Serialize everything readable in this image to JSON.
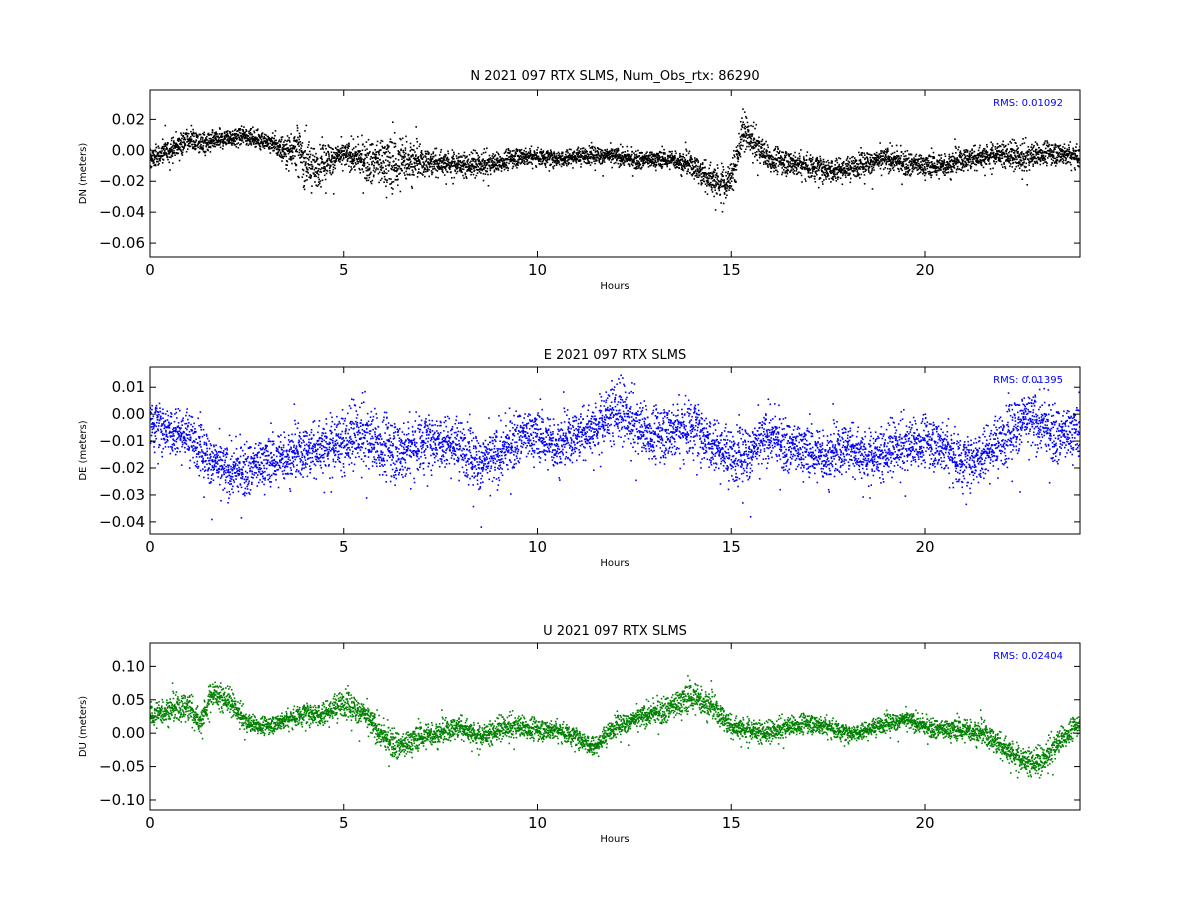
{
  "chart_data": [
    {
      "type": "scatter",
      "title": "N 2021 097 RTX  SLMS, Num_Obs_rtx: 86290",
      "xlabel": "Hours",
      "ylabel": "DN (meters)",
      "xlim": [
        0,
        24
      ],
      "ylim": [
        -0.069,
        0.039
      ],
      "xticks": [
        0,
        5,
        10,
        15,
        20
      ],
      "yticks": [
        0.02,
        0.0,
        -0.02,
        -0.04,
        -0.06
      ],
      "ytick_labels": [
        "0.02",
        "0.00",
        "−0.02",
        "−0.04",
        "−0.06"
      ],
      "rms_label": "RMS:  0.01092",
      "color": "#000000",
      "series": [
        {
          "x": [
            0,
            0.5,
            1,
            1.5,
            2,
            2.5,
            3,
            3.5,
            3.8,
            4,
            4.3,
            4.6,
            5,
            5.5,
            6,
            6.3,
            6.6,
            7,
            7.5,
            8,
            8.5,
            9,
            9.5,
            10,
            10.5,
            11,
            11.5,
            12,
            12.5,
            13,
            13.5,
            14,
            14.3,
            14.6,
            14.9,
            15.1,
            15.3,
            15.6,
            16,
            16.5,
            17,
            17.5,
            18,
            18.5,
            19,
            19.5,
            20,
            20.5,
            21,
            21.5,
            22,
            22.5,
            23,
            23.5,
            24
          ],
          "y": [
            -0.006,
            0.0,
            0.007,
            0.004,
            0.008,
            0.009,
            0.006,
            0.0,
            0.002,
            -0.008,
            -0.012,
            -0.006,
            -0.003,
            -0.006,
            -0.008,
            -0.01,
            -0.006,
            -0.008,
            -0.008,
            -0.009,
            -0.01,
            -0.008,
            -0.004,
            -0.004,
            -0.005,
            -0.004,
            -0.003,
            -0.004,
            -0.006,
            -0.006,
            -0.006,
            -0.01,
            -0.016,
            -0.02,
            -0.022,
            -0.01,
            0.012,
            0.004,
            -0.006,
            -0.008,
            -0.01,
            -0.012,
            -0.012,
            -0.008,
            -0.006,
            -0.008,
            -0.01,
            -0.01,
            -0.006,
            -0.004,
            -0.002,
            -0.006,
            -0.002,
            -0.002,
            -0.004
          ],
          "spread": [
            0.007,
            0.007,
            0.008,
            0.007,
            0.006,
            0.006,
            0.006,
            0.01,
            0.016,
            0.016,
            0.014,
            0.012,
            0.008,
            0.012,
            0.018,
            0.02,
            0.016,
            0.01,
            0.009,
            0.008,
            0.008,
            0.007,
            0.007,
            0.006,
            0.006,
            0.006,
            0.006,
            0.006,
            0.006,
            0.006,
            0.006,
            0.008,
            0.01,
            0.012,
            0.012,
            0.012,
            0.012,
            0.01,
            0.009,
            0.009,
            0.009,
            0.009,
            0.008,
            0.008,
            0.008,
            0.008,
            0.008,
            0.008,
            0.008,
            0.008,
            0.008,
            0.01,
            0.008,
            0.008,
            0.008
          ]
        }
      ]
    },
    {
      "type": "scatter",
      "title": "E 2021 097 RTX  SLMS",
      "xlabel": "Hours",
      "ylabel": "DE (meters)",
      "xlim": [
        0,
        24
      ],
      "ylim": [
        -0.0445,
        0.0175
      ],
      "xticks": [
        0,
        5,
        10,
        15,
        20
      ],
      "yticks": [
        0.01,
        0.0,
        -0.01,
        -0.02,
        -0.03,
        -0.04
      ],
      "ytick_labels": [
        "0.01",
        "0.00",
        "−0.01",
        "−0.02",
        "−0.03",
        "−0.04"
      ],
      "rms_label": "RMS:  0.01395",
      "color": "#0000ff",
      "series": [
        {
          "x": [
            0,
            0.5,
            1,
            1.5,
            2,
            2.5,
            3,
            3.5,
            4,
            4.5,
            5,
            5.5,
            6,
            6.5,
            7,
            7.5,
            8,
            8.5,
            9,
            9.5,
            10,
            10.5,
            11,
            11.5,
            12,
            12.5,
            13,
            13.5,
            14,
            14.5,
            15,
            15.5,
            16,
            16.5,
            17,
            17.5,
            18,
            18.5,
            19,
            19.5,
            20,
            20.5,
            21,
            21.5,
            22,
            22.5,
            23,
            23.5,
            24
          ],
          "y": [
            -0.003,
            -0.005,
            -0.008,
            -0.016,
            -0.022,
            -0.02,
            -0.018,
            -0.016,
            -0.014,
            -0.012,
            -0.01,
            -0.008,
            -0.012,
            -0.014,
            -0.01,
            -0.009,
            -0.012,
            -0.018,
            -0.016,
            -0.008,
            -0.008,
            -0.012,
            -0.008,
            -0.005,
            0.002,
            -0.004,
            -0.008,
            -0.006,
            -0.004,
            -0.01,
            -0.016,
            -0.014,
            -0.008,
            -0.012,
            -0.014,
            -0.016,
            -0.012,
            -0.016,
            -0.014,
            -0.012,
            -0.01,
            -0.012,
            -0.018,
            -0.014,
            -0.01,
            -0.002,
            -0.004,
            -0.008,
            -0.006
          ],
          "spread": [
            0.01,
            0.01,
            0.01,
            0.01,
            0.01,
            0.01,
            0.01,
            0.01,
            0.01,
            0.011,
            0.012,
            0.012,
            0.013,
            0.013,
            0.012,
            0.011,
            0.011,
            0.011,
            0.011,
            0.01,
            0.01,
            0.01,
            0.01,
            0.01,
            0.012,
            0.011,
            0.011,
            0.012,
            0.012,
            0.011,
            0.011,
            0.011,
            0.01,
            0.01,
            0.01,
            0.01,
            0.01,
            0.01,
            0.01,
            0.01,
            0.01,
            0.011,
            0.011,
            0.011,
            0.011,
            0.012,
            0.011,
            0.011,
            0.01
          ]
        }
      ]
    },
    {
      "type": "scatter",
      "title": "U 2021 097 RTX  SLMS",
      "xlabel": "Hours",
      "ylabel": "DU (meters)",
      "xlim": [
        0,
        24
      ],
      "ylim": [
        -0.115,
        0.135
      ],
      "xticks": [
        0,
        5,
        10,
        15,
        20
      ],
      "yticks": [
        0.1,
        0.05,
        0.0,
        -0.05,
        -0.1
      ],
      "ytick_labels": [
        "0.10",
        "0.05",
        "0.00",
        "−0.05",
        "−0.10"
      ],
      "rms_label": "RMS:  0.02404",
      "color": "#008000",
      "series": [
        {
          "x": [
            0,
            0.5,
            1,
            1.3,
            1.6,
            2,
            2.5,
            3,
            3.5,
            4,
            4.5,
            5,
            5.5,
            6,
            6.5,
            7,
            7.5,
            8,
            8.5,
            9,
            9.5,
            10,
            10.5,
            11,
            11.5,
            12,
            12.5,
            13,
            13.5,
            14,
            14.5,
            15,
            15.5,
            16,
            16.5,
            17,
            17.5,
            18,
            18.5,
            19,
            19.5,
            20,
            20.5,
            21,
            21.5,
            22,
            22.5,
            23,
            23.5,
            24
          ],
          "y": [
            0.025,
            0.035,
            0.04,
            0.015,
            0.06,
            0.05,
            0.015,
            0.01,
            0.02,
            0.03,
            0.03,
            0.045,
            0.03,
            -0.005,
            -0.02,
            -0.005,
            0.0,
            0.01,
            -0.005,
            0.005,
            0.01,
            0.005,
            0.005,
            -0.005,
            -0.02,
            0.01,
            0.02,
            0.03,
            0.04,
            0.055,
            0.04,
            0.01,
            0.005,
            0.0,
            0.01,
            0.015,
            0.01,
            0.0,
            0.005,
            0.015,
            0.02,
            0.01,
            0.005,
            0.005,
            0.0,
            -0.02,
            -0.04,
            -0.045,
            -0.01,
            0.015
          ],
          "spread": [
            0.02,
            0.02,
            0.025,
            0.02,
            0.022,
            0.02,
            0.015,
            0.014,
            0.015,
            0.018,
            0.02,
            0.022,
            0.02,
            0.022,
            0.022,
            0.02,
            0.018,
            0.018,
            0.018,
            0.018,
            0.018,
            0.018,
            0.016,
            0.016,
            0.016,
            0.016,
            0.016,
            0.018,
            0.022,
            0.025,
            0.02,
            0.018,
            0.018,
            0.016,
            0.016,
            0.016,
            0.016,
            0.014,
            0.014,
            0.014,
            0.014,
            0.014,
            0.016,
            0.018,
            0.018,
            0.02,
            0.02,
            0.022,
            0.02,
            0.016
          ]
        }
      ]
    }
  ]
}
